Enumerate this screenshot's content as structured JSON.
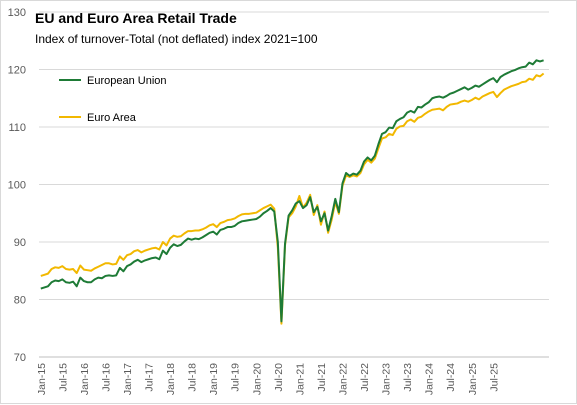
{
  "chart_data": {
    "type": "line",
    "title": "EU and Euro Area Retail Trade",
    "subtitle": "Index of turnover-Total (not deflated)  index 2021=100",
    "xlabel": "",
    "ylabel": "",
    "ylim": [
      70,
      130
    ],
    "yticks": [
      70,
      80,
      90,
      100,
      110,
      120,
      130
    ],
    "x_start": "Jan-15",
    "x_tick_labels": [
      "Jan-15",
      "Jul-15",
      "Jan-16",
      "Jul-16",
      "Jan-17",
      "Jul-17",
      "Jan-18",
      "Jul-18",
      "Jan-19",
      "Jul-19",
      "Jan-20",
      "Jul-20",
      "Jan-21",
      "Jul-21",
      "Jan-22",
      "Jul-22",
      "Jan-23",
      "Jul-23",
      "Jan-24",
      "Jul-24",
      "Jan-25",
      "Jul-25"
    ],
    "grid": true,
    "legend": "top-left",
    "series": [
      {
        "name": "European Union",
        "color": "#1e7b36",
        "values": [
          81.9,
          82.1,
          82.3,
          83.0,
          83.3,
          83.2,
          83.5,
          83.0,
          82.9,
          83.1,
          82.3,
          83.8,
          83.2,
          83.0,
          83.0,
          83.5,
          83.8,
          83.7,
          84.1,
          84.2,
          84.1,
          84.2,
          85.5,
          84.9,
          85.8,
          86.1,
          86.6,
          86.9,
          86.5,
          86.8,
          87.0,
          87.2,
          87.3,
          87.0,
          88.5,
          87.9,
          89.0,
          89.6,
          89.3,
          89.5,
          90.1,
          90.6,
          90.4,
          90.6,
          90.5,
          90.8,
          91.2,
          91.6,
          91.8,
          91.3,
          92.1,
          92.3,
          92.6,
          92.6,
          92.8,
          93.3,
          93.6,
          93.7,
          93.8,
          93.9,
          94.0,
          94.4,
          95.0,
          95.4,
          95.9,
          95.3,
          90.0,
          76.2,
          89.7,
          94.6,
          95.5,
          96.7,
          97.1,
          95.9,
          96.4,
          97.8,
          95.2,
          96.1,
          93.6,
          95.0,
          92.0,
          94.5,
          97.5,
          95.2,
          100.2,
          102.0,
          101.5,
          101.9,
          101.7,
          102.4,
          104.0,
          104.7,
          104.2,
          105.0,
          107.0,
          108.8,
          109.1,
          109.9,
          109.8,
          111.0,
          111.4,
          111.7,
          112.5,
          112.8,
          112.5,
          113.5,
          113.4,
          113.9,
          114.3,
          115.0,
          115.2,
          115.3,
          115.1,
          115.4,
          115.8,
          116.0,
          116.3,
          116.6,
          116.9,
          116.5,
          116.8,
          117.2,
          117.0,
          117.4,
          117.8,
          118.2,
          118.5,
          117.8,
          118.7,
          119.1,
          119.4,
          119.7,
          119.9,
          120.2,
          120.4,
          120.5,
          121.2,
          120.9,
          121.6,
          121.4,
          121.6
        ]
      },
      {
        "name": "Euro Area",
        "color": "#f2b800",
        "values": [
          84.1,
          84.3,
          84.5,
          85.3,
          85.6,
          85.5,
          85.8,
          85.3,
          85.2,
          85.3,
          84.6,
          85.9,
          85.2,
          85.1,
          85.0,
          85.4,
          85.7,
          86.0,
          86.3,
          86.3,
          86.1,
          86.2,
          87.5,
          86.9,
          87.7,
          87.9,
          88.4,
          88.6,
          88.2,
          88.5,
          88.7,
          88.9,
          89.0,
          88.7,
          90.0,
          89.4,
          90.6,
          91.1,
          90.9,
          91.0,
          91.5,
          91.9,
          91.9,
          92.0,
          92.0,
          92.2,
          92.5,
          92.9,
          93.1,
          92.6,
          93.3,
          93.5,
          93.8,
          93.9,
          94.1,
          94.5,
          94.8,
          94.9,
          94.9,
          95.0,
          95.1,
          95.5,
          95.9,
          96.2,
          96.5,
          95.8,
          89.0,
          75.8,
          89.4,
          94.3,
          95.0,
          96.2,
          98.0,
          96.0,
          96.8,
          98.2,
          94.7,
          96.4,
          93.0,
          95.3,
          91.6,
          93.9,
          97.0,
          94.9,
          99.8,
          101.6,
          101.3,
          101.6,
          101.4,
          102.0,
          103.5,
          104.3,
          103.8,
          104.5,
          106.3,
          108.0,
          108.2,
          108.8,
          108.6,
          109.7,
          110.1,
          110.2,
          111.0,
          111.3,
          110.9,
          111.6,
          111.8,
          112.3,
          112.7,
          113.0,
          113.1,
          113.2,
          112.9,
          113.5,
          113.9,
          114.0,
          114.1,
          114.4,
          114.6,
          114.4,
          114.7,
          115.1,
          114.8,
          115.3,
          115.6,
          115.9,
          116.1,
          115.2,
          115.9,
          116.5,
          116.8,
          117.1,
          117.3,
          117.5,
          117.8,
          117.9,
          118.4,
          118.2,
          119.0,
          118.8,
          119.3
        ]
      }
    ]
  }
}
